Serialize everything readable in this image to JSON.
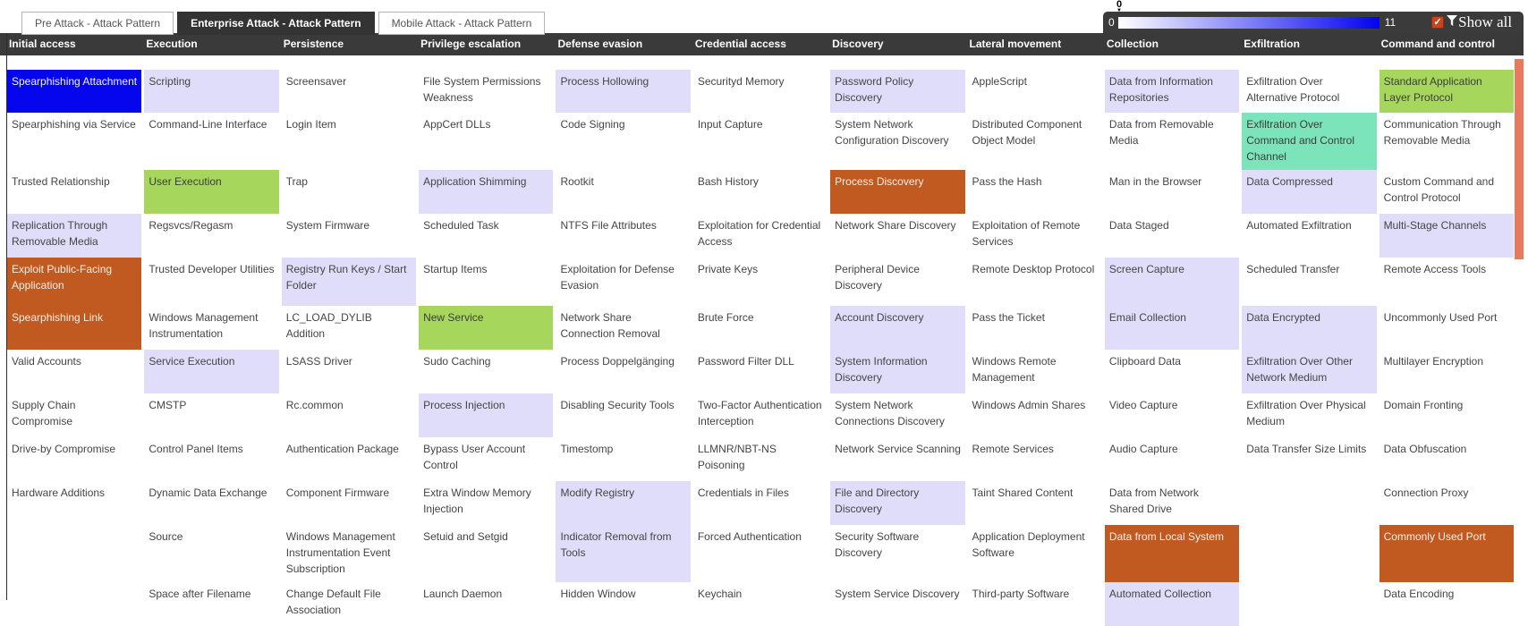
{
  "tabs": [
    {
      "label": "Pre Attack - Attack Pattern",
      "active": false
    },
    {
      "label": "Enterprise Attack - Attack Pattern",
      "active": true
    },
    {
      "label": "Mobile Attack - Attack Pattern",
      "active": false
    }
  ],
  "toolbar": {
    "min": "0",
    "max": "11",
    "handle_value": "0",
    "checkbox_checked": true,
    "checkmark": "✓",
    "show_all_label": "Show all",
    "gradient_start": "#ffffff",
    "gradient_end": "#0202f0",
    "panel_bg": "#3b3b3b",
    "checkbox_color": "#c7461f"
  },
  "colors": {
    "header_bg": "#3a3a3a",
    "cell_text": "#454545",
    "score_blue": "#0505ee",
    "score_orange": "#c05a20",
    "score_green": "#a6d75c",
    "score_teal": "#7ce4bb",
    "score_lavender": "#dfddf9",
    "scrollbar": "#e8795c"
  },
  "matrix": {
    "rows": 12,
    "columns": [
      {
        "tactic": "Initial access",
        "cells": [
          {
            "t": "Spearphishing Attachment",
            "c": "blue"
          },
          {
            "t": "Spearphishing via Service",
            "c": null
          },
          {
            "t": "Trusted Relationship",
            "c": null
          },
          {
            "t": "Replication Through Removable Media",
            "c": "lav"
          },
          {
            "t": "Exploit Public-Facing Application",
            "c": "orange"
          },
          {
            "t": "Spearphishing Link",
            "c": "orange"
          },
          {
            "t": "Valid Accounts",
            "c": null
          },
          {
            "t": "Supply Chain Compromise",
            "c": null
          },
          {
            "t": "Drive-by Compromise",
            "c": null
          },
          {
            "t": "Hardware Additions",
            "c": null
          },
          null,
          null
        ]
      },
      {
        "tactic": "Execution",
        "cells": [
          {
            "t": "Scripting",
            "c": "lav"
          },
          {
            "t": "Command-Line Interface",
            "c": null
          },
          {
            "t": "User Execution",
            "c": "green"
          },
          {
            "t": "Regsvcs/Regasm",
            "c": null
          },
          {
            "t": "Trusted Developer Utilities",
            "c": null
          },
          {
            "t": "Windows Management Instrumentation",
            "c": null
          },
          {
            "t": "Service Execution",
            "c": "lav"
          },
          {
            "t": "CMSTP",
            "c": null
          },
          {
            "t": "Control Panel Items",
            "c": null
          },
          {
            "t": "Dynamic Data Exchange",
            "c": null
          },
          {
            "t": "Source",
            "c": null
          },
          {
            "t": "Space after Filename",
            "c": null
          }
        ]
      },
      {
        "tactic": "Persistence",
        "cells": [
          {
            "t": "Screensaver",
            "c": null
          },
          {
            "t": "Login Item",
            "c": null
          },
          {
            "t": "Trap",
            "c": null
          },
          {
            "t": "System Firmware",
            "c": null
          },
          {
            "t": "Registry Run Keys / Start Folder",
            "c": "lav"
          },
          {
            "t": "LC_LOAD_DYLIB Addition",
            "c": null
          },
          {
            "t": "LSASS Driver",
            "c": null
          },
          {
            "t": "Rc.common",
            "c": null
          },
          {
            "t": "Authentication Package",
            "c": null
          },
          {
            "t": "Component Firmware",
            "c": null
          },
          {
            "t": "Windows Management Instrumentation Event Subscription",
            "c": null
          },
          {
            "t": "Change Default File Association",
            "c": null
          }
        ]
      },
      {
        "tactic": "Privilege escalation",
        "cells": [
          {
            "t": "File System Permissions Weakness",
            "c": null
          },
          {
            "t": "AppCert DLLs",
            "c": null
          },
          {
            "t": "Application Shimming",
            "c": "lav"
          },
          {
            "t": "Scheduled Task",
            "c": null
          },
          {
            "t": "Startup Items",
            "c": null
          },
          {
            "t": "New Service",
            "c": "green"
          },
          {
            "t": "Sudo Caching",
            "c": null
          },
          {
            "t": "Process Injection",
            "c": "lav"
          },
          {
            "t": "Bypass User Account Control",
            "c": null
          },
          {
            "t": "Extra Window Memory Injection",
            "c": null
          },
          {
            "t": "Setuid and Setgid",
            "c": null
          },
          {
            "t": "Launch Daemon",
            "c": null
          }
        ]
      },
      {
        "tactic": "Defense evasion",
        "cells": [
          {
            "t": "Process Hollowing",
            "c": "lav"
          },
          {
            "t": "Code Signing",
            "c": null
          },
          {
            "t": "Rootkit",
            "c": null
          },
          {
            "t": "NTFS File Attributes",
            "c": null
          },
          {
            "t": "Exploitation for Defense Evasion",
            "c": null
          },
          {
            "t": "Network Share Connection Removal",
            "c": null
          },
          {
            "t": "Process Doppelgänging",
            "c": null
          },
          {
            "t": "Disabling Security Tools",
            "c": null
          },
          {
            "t": "Timestomp",
            "c": null
          },
          {
            "t": "Modify Registry",
            "c": "lav"
          },
          {
            "t": "Indicator Removal from Tools",
            "c": "lav"
          },
          {
            "t": "Hidden Window",
            "c": null
          }
        ]
      },
      {
        "tactic": "Credential access",
        "cells": [
          {
            "t": "Securityd Memory",
            "c": null
          },
          {
            "t": "Input Capture",
            "c": null
          },
          {
            "t": "Bash History",
            "c": null
          },
          {
            "t": "Exploitation for Credential Access",
            "c": null
          },
          {
            "t": "Private Keys",
            "c": null
          },
          {
            "t": "Brute Force",
            "c": null
          },
          {
            "t": "Password Filter DLL",
            "c": null
          },
          {
            "t": "Two-Factor Authentication Interception",
            "c": null
          },
          {
            "t": "LLMNR/NBT-NS Poisoning",
            "c": null
          },
          {
            "t": "Credentials in Files",
            "c": null
          },
          {
            "t": "Forced Authentication",
            "c": null
          },
          {
            "t": "Keychain",
            "c": null
          }
        ]
      },
      {
        "tactic": "Discovery",
        "cells": [
          {
            "t": "Password Policy Discovery",
            "c": "lav"
          },
          {
            "t": "System Network Configuration Discovery",
            "c": null
          },
          {
            "t": "Process Discovery",
            "c": "orange"
          },
          {
            "t": "Network Share Discovery",
            "c": null
          },
          {
            "t": "Peripheral Device Discovery",
            "c": null
          },
          {
            "t": "Account Discovery",
            "c": "lav"
          },
          {
            "t": "System Information Discovery",
            "c": "lav"
          },
          {
            "t": "System Network Connections Discovery",
            "c": null
          },
          {
            "t": "Network Service Scanning",
            "c": null
          },
          {
            "t": "File and Directory Discovery",
            "c": "lav"
          },
          {
            "t": "Security Software Discovery",
            "c": null
          },
          {
            "t": "System Service Discovery",
            "c": null
          }
        ]
      },
      {
        "tactic": "Lateral movement",
        "cells": [
          {
            "t": "AppleScript",
            "c": null
          },
          {
            "t": "Distributed Component Object Model",
            "c": null
          },
          {
            "t": "Pass the Hash",
            "c": null
          },
          {
            "t": "Exploitation of Remote Services",
            "c": null
          },
          {
            "t": "Remote Desktop Protocol",
            "c": null
          },
          {
            "t": "Pass the Ticket",
            "c": null
          },
          {
            "t": "Windows Remote Management",
            "c": null
          },
          {
            "t": "Windows Admin Shares",
            "c": null
          },
          {
            "t": "Remote Services",
            "c": null
          },
          {
            "t": "Taint Shared Content",
            "c": null
          },
          {
            "t": "Application Deployment Software",
            "c": null
          },
          {
            "t": "Third-party Software",
            "c": null
          }
        ]
      },
      {
        "tactic": "Collection",
        "cells": [
          {
            "t": "Data from Information Repositories",
            "c": "lav"
          },
          {
            "t": "Data from Removable Media",
            "c": null
          },
          {
            "t": "Man in the Browser",
            "c": null
          },
          {
            "t": "Data Staged",
            "c": null
          },
          {
            "t": "Screen Capture",
            "c": "lav"
          },
          {
            "t": "Email Collection",
            "c": "lav"
          },
          {
            "t": "Clipboard Data",
            "c": null
          },
          {
            "t": "Video Capture",
            "c": null
          },
          {
            "t": "Audio Capture",
            "c": null
          },
          {
            "t": "Data from Network Shared Drive",
            "c": null
          },
          {
            "t": "Data from Local System",
            "c": "orange"
          },
          {
            "t": "Automated Collection",
            "c": "lav"
          }
        ]
      },
      {
        "tactic": "Exfiltration",
        "cells": [
          {
            "t": "Exfiltration Over Alternative Protocol",
            "c": null
          },
          {
            "t": "Exfiltration Over Command and Control Channel",
            "c": "teal"
          },
          {
            "t": "Data Compressed",
            "c": "lav"
          },
          {
            "t": "Automated Exfiltration",
            "c": null
          },
          {
            "t": "Scheduled Transfer",
            "c": null
          },
          {
            "t": "Data Encrypted",
            "c": "lav"
          },
          {
            "t": "Exfiltration Over Other Network Medium",
            "c": "lav"
          },
          {
            "t": "Exfiltration Over Physical Medium",
            "c": null
          },
          {
            "t": "Data Transfer Size Limits",
            "c": null
          },
          null,
          null,
          null
        ]
      },
      {
        "tactic": "Command and control",
        "cells": [
          {
            "t": "Standard Application Layer Protocol",
            "c": "green"
          },
          {
            "t": "Communication Through Removable Media",
            "c": null
          },
          {
            "t": "Custom Command and Control Protocol",
            "c": null
          },
          {
            "t": "Multi-Stage Channels",
            "c": "lav"
          },
          {
            "t": "Remote Access Tools",
            "c": null
          },
          {
            "t": "Uncommonly Used Port",
            "c": null
          },
          {
            "t": "Multilayer Encryption",
            "c": null
          },
          {
            "t": "Domain Fronting",
            "c": null
          },
          {
            "t": "Data Obfuscation",
            "c": null
          },
          {
            "t": "Connection Proxy",
            "c": null
          },
          {
            "t": "Commonly Used Port",
            "c": "orange"
          },
          {
            "t": "Data Encoding",
            "c": null
          }
        ]
      }
    ]
  }
}
